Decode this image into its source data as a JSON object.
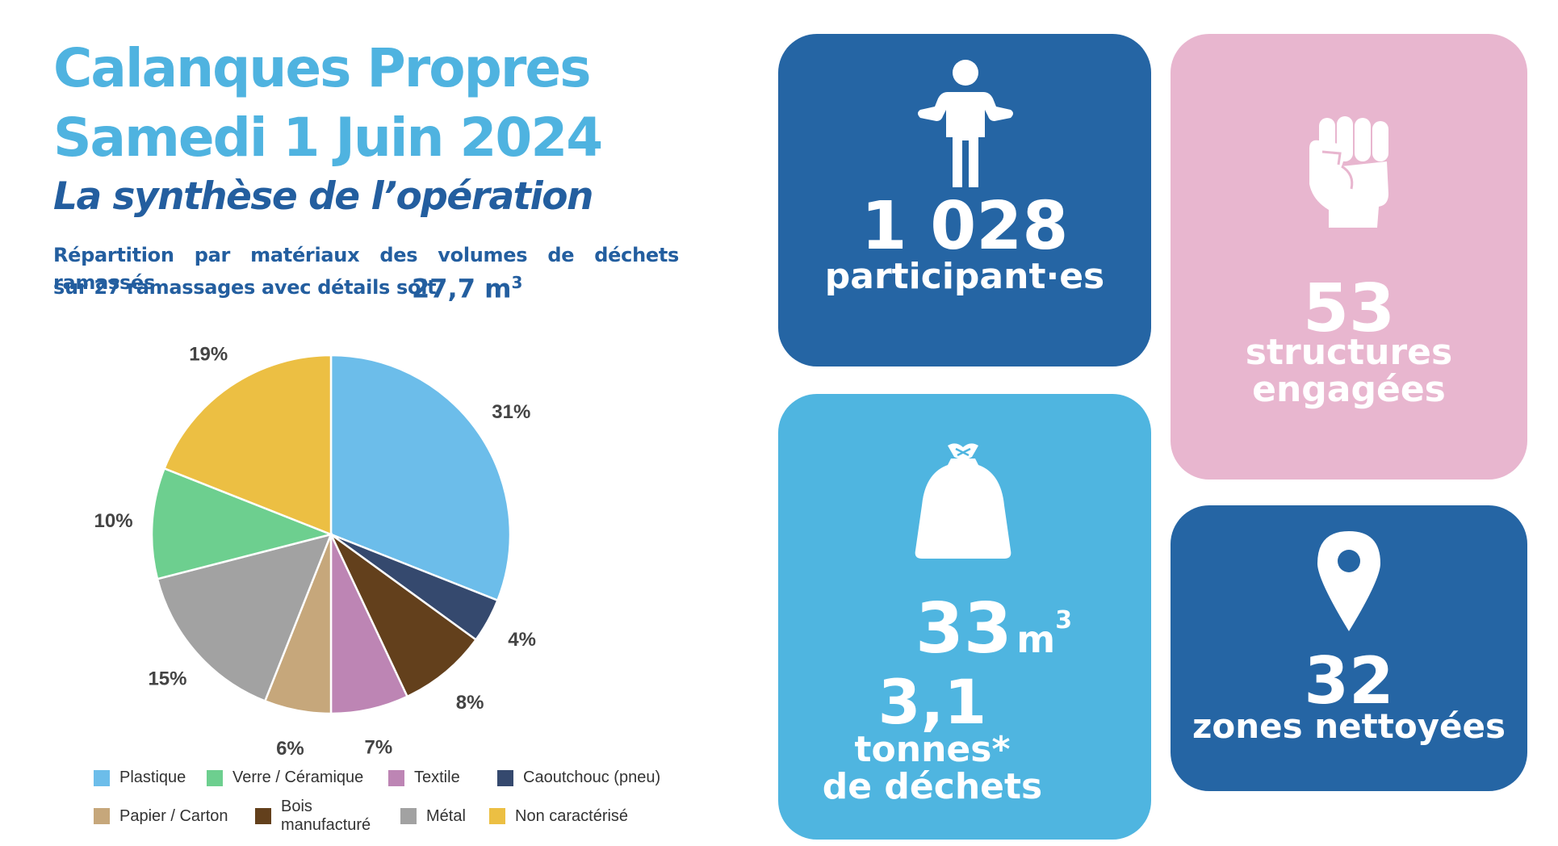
{
  "header": {
    "title_line1": "Calanques Propres",
    "title_line2": "Samedi 1 Juin 2024",
    "subtitle": "La synthèse de l’opération",
    "description_line1": "Répartition par matériaux des volumes de déchets ramassés",
    "description_line2": "sur 27 ramassages avec détails soit",
    "volume_value": "27,7",
    "volume_unit": "m",
    "volume_exponent": "3"
  },
  "chart_data": {
    "type": "pie",
    "title": "",
    "unit": "%",
    "start_angle_deg": 0,
    "direction": "clockwise",
    "slices": [
      {
        "label": "Plastique",
        "value": 31,
        "value_label": "31%",
        "color": "#6cbdea"
      },
      {
        "label": "Caoutchouc (pneu)",
        "value": 4,
        "value_label": "4%",
        "color": "#35496e"
      },
      {
        "label": "Bois manufacturé",
        "value": 8,
        "value_label": "8%",
        "color": "#63401c"
      },
      {
        "label": "Textile",
        "value": 7,
        "value_label": "7%",
        "color": "#bd85b4"
      },
      {
        "label": "Papier / Carton",
        "value": 6,
        "value_label": "6%",
        "color": "#c6a77b"
      },
      {
        "label": "Métal",
        "value": 15,
        "value_label": "15%",
        "color": "#a2a2a2"
      },
      {
        "label": "Verre / Céramique",
        "value": 10,
        "value_label": "10%",
        "color": "#6dcf8f"
      },
      {
        "label": "Non caractérisé",
        "value": 19,
        "value_label": "19%",
        "color": "#ecbf43"
      }
    ],
    "legend_rows": [
      [
        "Plastique",
        "Verre / Céramique",
        "Textile",
        "Caoutchouc (pneu)"
      ],
      [
        "Papier / Carton",
        "Bois manufacturé",
        "Métal",
        "Non caractérisé"
      ]
    ],
    "legend_placement": "bottom"
  },
  "stats": {
    "participants": {
      "value": "1 028",
      "label": "participant·es",
      "icon": "person-icon",
      "color": "#2565a4"
    },
    "structures": {
      "value": "53",
      "label_line1": "structures",
      "label_line2": "engagées",
      "icon": "fist-icon",
      "color": "#e8b6cf"
    },
    "waste": {
      "volume_value": "33",
      "volume_unit": "m",
      "volume_exponent": "3",
      "weight_value": "3,1",
      "weight_label_line1": "tonnes*",
      "weight_label_line2": "de déchets",
      "icon": "trash-bag-icon",
      "color": "#4fb5e0"
    },
    "zones": {
      "value": "32",
      "label": "zones nettoyées",
      "icon": "location-pin-icon",
      "color": "#2565a4"
    }
  }
}
